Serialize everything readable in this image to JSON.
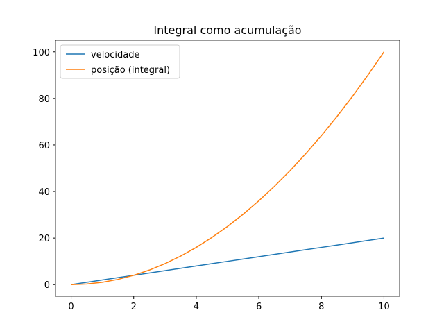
{
  "chart_data": {
    "type": "line",
    "title": "Integral como acumulação",
    "x": [
      0,
      0.5,
      1,
      1.5,
      2,
      2.5,
      3,
      3.5,
      4,
      4.5,
      5,
      5.5,
      6,
      6.5,
      7,
      7.5,
      8,
      8.5,
      9,
      9.5,
      10
    ],
    "series": [
      {
        "name": "velocidade",
        "color": "#1f77b4",
        "values": [
          0,
          1,
          2,
          3,
          4,
          5,
          6,
          7,
          8,
          9,
          10,
          11,
          12,
          13,
          14,
          15,
          16,
          17,
          18,
          19,
          20
        ]
      },
      {
        "name": "posição (integral)",
        "color": "#ff7f0e",
        "values": [
          0,
          0.25,
          1,
          2.25,
          4,
          6.25,
          9,
          12.25,
          16,
          20.25,
          25,
          30.25,
          36,
          42.25,
          49,
          56.25,
          64,
          72.25,
          81,
          90.25,
          100
        ]
      }
    ],
    "xlim": [
      -0.5,
      10.5
    ],
    "ylim": [
      -5,
      105
    ],
    "xticks": [
      0,
      2,
      4,
      6,
      8,
      10
    ],
    "yticks": [
      0,
      20,
      40,
      60,
      80,
      100
    ],
    "legend": "upper left"
  }
}
